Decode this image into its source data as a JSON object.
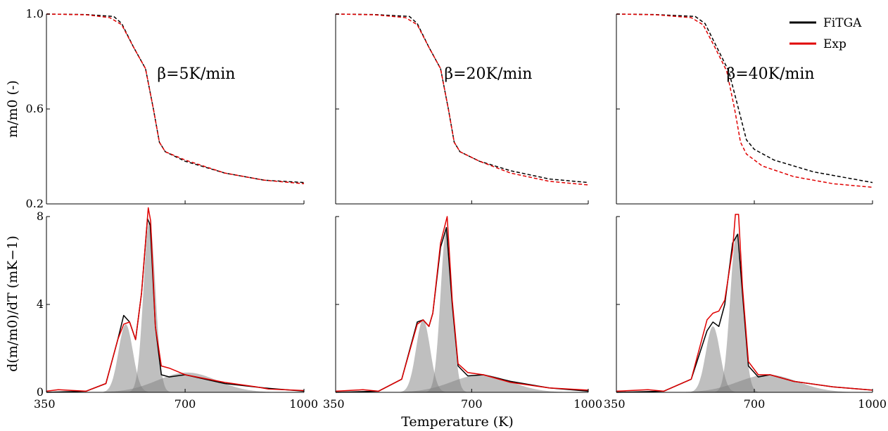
{
  "figure": {
    "xlabel": "Temperature (K)",
    "ylabel_top": "m/m0 (-)",
    "ylabel_bottom": "d(m/m0)/dT (mK−1)"
  },
  "legend": {
    "placement": "top-right",
    "items": [
      {
        "label": "FiTGA",
        "color": "#000000"
      },
      {
        "label": "Exp",
        "color": "#e00000"
      }
    ]
  },
  "chart_data": [
    {
      "type": "line",
      "row": "mass",
      "title": "β=5K/min",
      "xlim": [
        350,
        1000
      ],
      "ylim": [
        0.2,
        1.0
      ],
      "xticks": [
        350,
        700,
        1000
      ],
      "yticks": [
        0.2,
        0.6,
        1.0
      ],
      "ytick_labels": [
        "0.2",
        "0.6",
        "1.0"
      ],
      "series": [
        {
          "name": "FiTGA",
          "color": "#000000",
          "dash": true,
          "x": [
            350,
            450,
            520,
            540,
            570,
            600,
            620,
            635,
            650,
            700,
            800,
            900,
            1000
          ],
          "y": [
            1.0,
            0.998,
            0.99,
            0.96,
            0.86,
            0.77,
            0.6,
            0.46,
            0.42,
            0.38,
            0.33,
            0.3,
            0.29
          ]
        },
        {
          "name": "Exp",
          "color": "#e00000",
          "dash": true,
          "x": [
            350,
            450,
            510,
            540,
            570,
            600,
            620,
            635,
            650,
            700,
            800,
            900,
            1000
          ],
          "y": [
            1.0,
            0.997,
            0.985,
            0.955,
            0.86,
            0.77,
            0.6,
            0.46,
            0.42,
            0.385,
            0.33,
            0.3,
            0.285
          ]
        }
      ]
    },
    {
      "type": "line",
      "row": "mass",
      "title": "β=20K/min",
      "xlim": [
        350,
        1000
      ],
      "ylim": [
        0.2,
        1.0
      ],
      "xticks": [
        350,
        700,
        1000
      ],
      "yticks": [
        0.2,
        0.6,
        1.0
      ],
      "ytick_labels": [
        "",
        "",
        ""
      ],
      "series": [
        {
          "name": "FiTGA",
          "color": "#000000",
          "dash": true,
          "x": [
            350,
            450,
            540,
            560,
            590,
            620,
            640,
            655,
            670,
            720,
            800,
            900,
            1000
          ],
          "y": [
            1.0,
            0.998,
            0.99,
            0.96,
            0.86,
            0.77,
            0.6,
            0.46,
            0.42,
            0.38,
            0.34,
            0.305,
            0.29
          ]
        },
        {
          "name": "Exp",
          "color": "#e00000",
          "dash": true,
          "x": [
            350,
            450,
            530,
            560,
            590,
            620,
            640,
            655,
            670,
            720,
            800,
            900,
            1000
          ],
          "y": [
            1.0,
            0.997,
            0.985,
            0.955,
            0.86,
            0.77,
            0.6,
            0.46,
            0.42,
            0.38,
            0.33,
            0.295,
            0.28
          ]
        }
      ]
    },
    {
      "type": "line",
      "row": "mass",
      "title": "β=40K/min",
      "xlim": [
        350,
        1000
      ],
      "ylim": [
        0.2,
        1.0
      ],
      "xticks": [
        350,
        700,
        1000
      ],
      "yticks": [
        0.2,
        0.6,
        1.0
      ],
      "ytick_labels": [
        "",
        "",
        ""
      ],
      "series": [
        {
          "name": "FiTGA",
          "color": "#000000",
          "dash": true,
          "x": [
            350,
            450,
            550,
            575,
            605,
            635,
            660,
            680,
            700,
            750,
            850,
            1000
          ],
          "y": [
            1.0,
            0.998,
            0.99,
            0.96,
            0.86,
            0.76,
            0.6,
            0.47,
            0.43,
            0.385,
            0.335,
            0.29
          ]
        },
        {
          "name": "Exp",
          "color": "#e00000",
          "dash": true,
          "x": [
            350,
            450,
            540,
            570,
            600,
            630,
            650,
            665,
            680,
            720,
            800,
            900,
            1000
          ],
          "y": [
            1.0,
            0.997,
            0.985,
            0.955,
            0.86,
            0.76,
            0.6,
            0.46,
            0.41,
            0.36,
            0.315,
            0.285,
            0.27
          ]
        }
      ]
    },
    {
      "type": "area",
      "row": "rate",
      "xlim": [
        350,
        1000
      ],
      "ylim": [
        0,
        8
      ],
      "xticks": [
        350,
        700,
        1000
      ],
      "xtick_labels": [
        "350",
        "700",
        "1000"
      ],
      "yticks": [
        0,
        4,
        8
      ],
      "ytick_labels": [
        "0",
        "4",
        "8"
      ],
      "components": [
        {
          "center": 550,
          "height": 3.1,
          "width": 18
        },
        {
          "center": 610,
          "height": 7.8,
          "width": 15
        },
        {
          "center": 705,
          "height": 0.9,
          "width": 75
        }
      ],
      "series": [
        {
          "name": "FiTGA",
          "color": "#000000",
          "x": [
            350,
            450,
            500,
            530,
            545,
            560,
            575,
            590,
            605,
            612,
            625,
            640,
            660,
            700,
            800,
            900,
            1000
          ],
          "y": [
            0.0,
            0.05,
            0.4,
            2.4,
            3.5,
            3.2,
            2.4,
            4.5,
            7.9,
            7.6,
            3.0,
            0.8,
            0.7,
            0.8,
            0.4,
            0.2,
            0.05
          ]
        },
        {
          "name": "Exp",
          "color": "#e00000",
          "x": [
            350,
            380,
            450,
            500,
            530,
            545,
            560,
            575,
            590,
            607,
            613,
            625,
            640,
            660,
            700,
            800,
            880,
            910,
            1000
          ],
          "y": [
            0.05,
            0.12,
            0.05,
            0.4,
            2.4,
            3.1,
            3.2,
            2.4,
            4.5,
            8.4,
            7.8,
            3.0,
            1.2,
            1.1,
            0.8,
            0.45,
            0.25,
            0.15,
            0.08
          ]
        }
      ]
    },
    {
      "type": "area",
      "row": "rate",
      "xlim": [
        350,
        1000
      ],
      "ylim": [
        0,
        8
      ],
      "xticks": [
        350,
        700,
        1000
      ],
      "xtick_labels": [
        "350",
        "700",
        "1000"
      ],
      "yticks": [
        0,
        4,
        8
      ],
      "ytick_labels": [
        "",
        "",
        ""
      ],
      "components": [
        {
          "center": 575,
          "height": 3.3,
          "width": 18
        },
        {
          "center": 635,
          "height": 7.4,
          "width": 15
        },
        {
          "center": 725,
          "height": 0.8,
          "width": 75
        }
      ],
      "series": [
        {
          "name": "FiTGA",
          "color": "#000000",
          "x": [
            350,
            460,
            520,
            560,
            575,
            590,
            600,
            620,
            635,
            650,
            665,
            690,
            730,
            800,
            900,
            1000
          ],
          "y": [
            0.0,
            0.05,
            0.6,
            3.2,
            3.3,
            3.0,
            3.6,
            6.6,
            7.5,
            4.0,
            1.2,
            0.75,
            0.8,
            0.5,
            0.2,
            0.05
          ]
        },
        {
          "name": "Exp",
          "color": "#e00000",
          "x": [
            350,
            420,
            460,
            520,
            560,
            575,
            590,
            600,
            620,
            637,
            650,
            665,
            690,
            730,
            800,
            900,
            1000
          ],
          "y": [
            0.05,
            0.12,
            0.05,
            0.6,
            3.1,
            3.3,
            3.0,
            3.6,
            6.8,
            8.0,
            4.2,
            1.3,
            0.9,
            0.8,
            0.45,
            0.2,
            0.1
          ]
        }
      ]
    },
    {
      "type": "area",
      "row": "rate",
      "xlim": [
        350,
        1000
      ],
      "ylim": [
        0,
        8
      ],
      "xticks": [
        350,
        700,
        1000
      ],
      "xtick_labels": [
        "350",
        "700",
        "1000"
      ],
      "yticks": [
        0,
        4,
        8
      ],
      "ytick_labels": [
        "",
        "",
        ""
      ],
      "components": [
        {
          "center": 595,
          "height": 3.0,
          "width": 18
        },
        {
          "center": 655,
          "height": 7.2,
          "width": 16
        },
        {
          "center": 735,
          "height": 0.8,
          "width": 75
        }
      ],
      "series": [
        {
          "name": "FiTGA",
          "color": "#000000",
          "x": [
            350,
            470,
            540,
            580,
            595,
            610,
            625,
            645,
            658,
            670,
            685,
            710,
            740,
            800,
            900,
            1000
          ],
          "y": [
            0.0,
            0.05,
            0.6,
            2.8,
            3.2,
            3.0,
            4.0,
            6.8,
            7.2,
            4.5,
            1.2,
            0.7,
            0.8,
            0.5,
            0.25,
            0.1
          ]
        },
        {
          "name": "Exp",
          "color": "#e00000",
          "x": [
            350,
            430,
            470,
            540,
            580,
            595,
            610,
            625,
            645,
            652,
            660,
            670,
            685,
            710,
            740,
            800,
            900,
            1000
          ],
          "y": [
            0.05,
            0.12,
            0.05,
            0.6,
            3.3,
            3.6,
            3.7,
            4.2,
            6.5,
            8.1,
            8.1,
            4.8,
            1.4,
            0.8,
            0.8,
            0.5,
            0.25,
            0.1
          ]
        }
      ]
    }
  ]
}
